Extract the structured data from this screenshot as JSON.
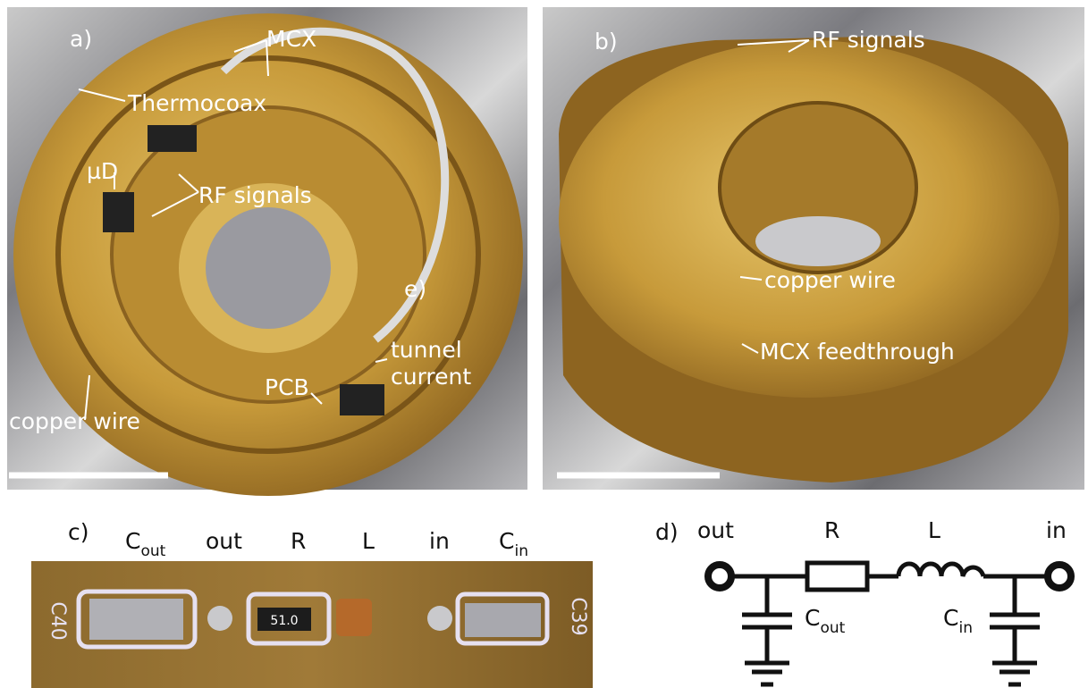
{
  "panel_a": {
    "label": "a)",
    "mcx": "MCX",
    "thermocoax": "Thermocoax",
    "micro_d": "µD",
    "rf_signals": "RF signals",
    "inset_label": "e)",
    "tunnel_current": [
      "tunnel",
      "current"
    ],
    "pcb": "PCB",
    "copper_wire": "copper wire"
  },
  "panel_b": {
    "label": "b)",
    "rf_signals": "RF signals",
    "copper_wire": "copper wire",
    "mcx_feedthrough": "MCX feedthrough"
  },
  "panel_c": {
    "label": "c)",
    "c_out": {
      "text": "C",
      "sub": "out"
    },
    "out": "out",
    "r": "R",
    "l": "L",
    "in": "in",
    "c_in": {
      "text": "C",
      "sub": "in"
    },
    "pcb_prints": [
      "C40",
      "51.0",
      "C39"
    ]
  },
  "panel_d": {
    "label": "d)",
    "out": "out",
    "r": "R",
    "l": "L",
    "in": "in",
    "c_out": {
      "text": "C",
      "sub": "out"
    },
    "c_in": {
      "text": "C",
      "sub": "in"
    }
  }
}
